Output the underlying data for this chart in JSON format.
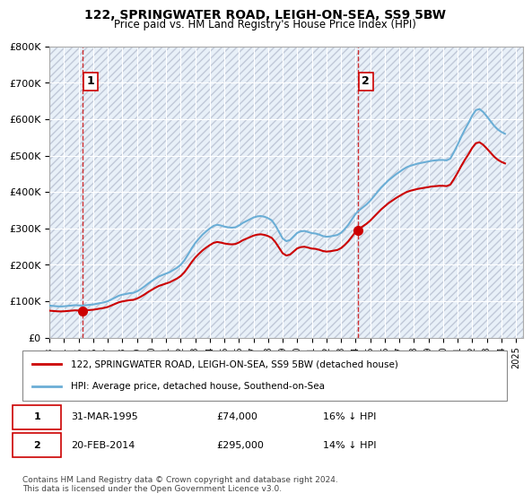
{
  "title": "122, SPRINGWATER ROAD, LEIGH-ON-SEA, SS9 5BW",
  "subtitle": "Price paid vs. HM Land Registry's House Price Index (HPI)",
  "ylabel": "",
  "ylim": [
    0,
    800000
  ],
  "yticks": [
    0,
    100000,
    200000,
    300000,
    400000,
    500000,
    600000,
    700000,
    800000
  ],
  "ytick_labels": [
    "£0",
    "£100K",
    "£200K",
    "£300K",
    "£400K",
    "£500K",
    "£600K",
    "£700K",
    "£800K"
  ],
  "hpi_color": "#6baed6",
  "price_color": "#cc0000",
  "marker_color": "#cc0000",
  "dashed_line_color": "#cc0000",
  "bg_color": "#ffffff",
  "plot_bg_color": "#e8f0f8",
  "grid_color": "#ffffff",
  "hatch_color": "#c0c8d8",
  "transaction1": {
    "date": "1995-03-31",
    "price": 74000,
    "label": "1"
  },
  "transaction2": {
    "date": "2014-02-20",
    "price": 295000,
    "label": "2"
  },
  "legend_line1": "122, SPRINGWATER ROAD, LEIGH-ON-SEA, SS9 5BW (detached house)",
  "legend_line2": "HPI: Average price, detached house, Southend-on-Sea",
  "table_row1": "1    31-MAR-1995         £74,000        16% ↓ HPI",
  "table_row2": "2    20-FEB-2014         £295,000      14% ↓ HPI",
  "footnote": "Contains HM Land Registry data © Crown copyright and database right 2024.\nThis data is licensed under the Open Government Licence v3.0.",
  "hpi_data": {
    "dates": [
      1993.0,
      1993.25,
      1993.5,
      1993.75,
      1994.0,
      1994.25,
      1994.5,
      1994.75,
      1995.0,
      1995.25,
      1995.5,
      1995.75,
      1996.0,
      1996.25,
      1996.5,
      1996.75,
      1997.0,
      1997.25,
      1997.5,
      1997.75,
      1998.0,
      1998.25,
      1998.5,
      1998.75,
      1999.0,
      1999.25,
      1999.5,
      1999.75,
      2000.0,
      2000.25,
      2000.5,
      2000.75,
      2001.0,
      2001.25,
      2001.5,
      2001.75,
      2002.0,
      2002.25,
      2002.5,
      2002.75,
      2003.0,
      2003.25,
      2003.5,
      2003.75,
      2004.0,
      2004.25,
      2004.5,
      2004.75,
      2005.0,
      2005.25,
      2005.5,
      2005.75,
      2006.0,
      2006.25,
      2006.5,
      2006.75,
      2007.0,
      2007.25,
      2007.5,
      2007.75,
      2008.0,
      2008.25,
      2008.5,
      2008.75,
      2009.0,
      2009.25,
      2009.5,
      2009.75,
      2010.0,
      2010.25,
      2010.5,
      2010.75,
      2011.0,
      2011.25,
      2011.5,
      2011.75,
      2012.0,
      2012.25,
      2012.5,
      2012.75,
      2013.0,
      2013.25,
      2013.5,
      2013.75,
      2014.0,
      2014.25,
      2014.5,
      2014.75,
      2015.0,
      2015.25,
      2015.5,
      2015.75,
      2016.0,
      2016.25,
      2016.5,
      2016.75,
      2017.0,
      2017.25,
      2017.5,
      2017.75,
      2018.0,
      2018.25,
      2018.5,
      2018.75,
      2019.0,
      2019.25,
      2019.5,
      2019.75,
      2020.0,
      2020.25,
      2020.5,
      2020.75,
      2021.0,
      2021.25,
      2021.5,
      2021.75,
      2022.0,
      2022.25,
      2022.5,
      2022.75,
      2023.0,
      2023.25,
      2023.5,
      2023.75,
      2024.0,
      2024.25
    ],
    "values": [
      88000,
      87000,
      86000,
      85500,
      86000,
      87000,
      88000,
      89000,
      88500,
      88000,
      89000,
      90000,
      91000,
      93000,
      95000,
      97000,
      100000,
      105000,
      110000,
      115000,
      118000,
      120000,
      122000,
      123000,
      127000,
      133000,
      140000,
      148000,
      155000,
      162000,
      168000,
      172000,
      176000,
      180000,
      186000,
      192000,
      200000,
      212000,
      228000,
      245000,
      260000,
      272000,
      283000,
      292000,
      300000,
      307000,
      310000,
      308000,
      305000,
      303000,
      302000,
      303000,
      308000,
      315000,
      320000,
      325000,
      330000,
      333000,
      334000,
      332000,
      328000,
      322000,
      308000,
      290000,
      272000,
      265000,
      268000,
      278000,
      288000,
      292000,
      293000,
      290000,
      287000,
      286000,
      283000,
      279000,
      277000,
      278000,
      280000,
      282000,
      288000,
      298000,
      310000,
      325000,
      340000,
      350000,
      358000,
      366000,
      376000,
      388000,
      400000,
      412000,
      422000,
      432000,
      440000,
      448000,
      455000,
      462000,
      468000,
      472000,
      475000,
      478000,
      480000,
      482000,
      484000,
      486000,
      487000,
      488000,
      488000,
      487000,
      492000,
      510000,
      530000,
      552000,
      572000,
      590000,
      610000,
      625000,
      628000,
      620000,
      608000,
      595000,
      582000,
      572000,
      565000,
      560000
    ]
  },
  "price_data": {
    "dates": [
      1995.25,
      2014.13
    ],
    "values": [
      74000,
      295000
    ]
  }
}
